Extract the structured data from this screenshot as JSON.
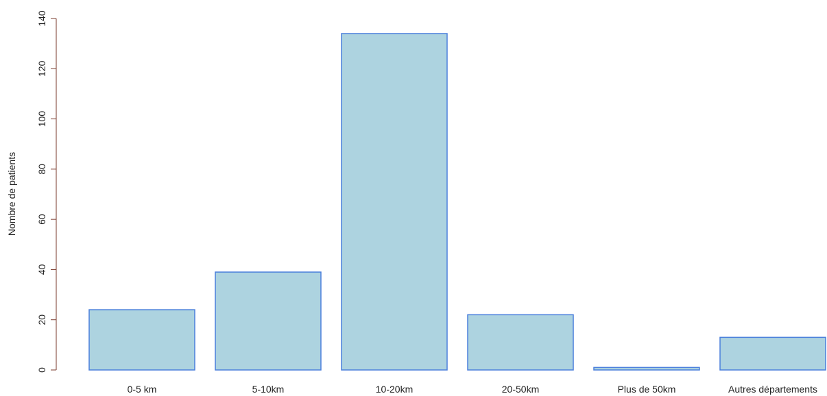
{
  "chart_data": {
    "type": "bar",
    "title": "",
    "xlabel": "",
    "ylabel": "Nombre de patients",
    "categories": [
      "0-5 km",
      "5-10km",
      "10-20km",
      "20-50km",
      "Plus de 50km",
      "Autres départements"
    ],
    "values": [
      24,
      39,
      134,
      22,
      1,
      13
    ],
    "ylim": [
      0,
      140
    ],
    "yticks": [
      "0",
      "20",
      "40",
      "60",
      "80",
      "100",
      "120",
      "140"
    ],
    "grid": false,
    "colors": {
      "bar_fill": "#add3e0",
      "bar_stroke": "#4a7fdc",
      "axis": "#7a3b2e",
      "text": "#222222"
    }
  }
}
